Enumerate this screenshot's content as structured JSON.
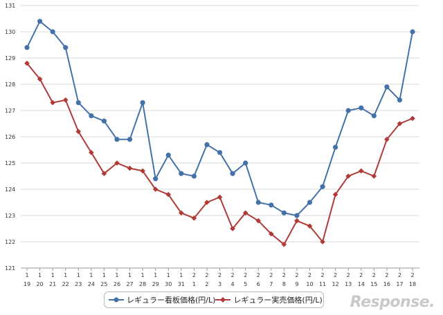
{
  "chart_data": {
    "type": "line",
    "categories": [
      [
        "1",
        "19"
      ],
      [
        "1",
        "20"
      ],
      [
        "1",
        "21"
      ],
      [
        "1",
        "22"
      ],
      [
        "1",
        "23"
      ],
      [
        "1",
        "24"
      ],
      [
        "1",
        "25"
      ],
      [
        "1",
        "26"
      ],
      [
        "1",
        "27"
      ],
      [
        "1",
        "28"
      ],
      [
        "1",
        "29"
      ],
      [
        "1",
        "30"
      ],
      [
        "1",
        "31"
      ],
      [
        "2",
        "1"
      ],
      [
        "2",
        "2"
      ],
      [
        "2",
        "3"
      ],
      [
        "2",
        "4"
      ],
      [
        "2",
        "5"
      ],
      [
        "2",
        "6"
      ],
      [
        "2",
        "7"
      ],
      [
        "2",
        "8"
      ],
      [
        "2",
        "9"
      ],
      [
        "2",
        "10"
      ],
      [
        "2",
        "11"
      ],
      [
        "2",
        "12"
      ],
      [
        "2",
        "13"
      ],
      [
        "2",
        "14"
      ],
      [
        "2",
        "15"
      ],
      [
        "2",
        "16"
      ],
      [
        "2",
        "17"
      ],
      [
        "2",
        "18"
      ]
    ],
    "series": [
      {
        "name": "レギュラー看板価格(円/L)",
        "color": "#4472a8",
        "marker": "circle",
        "values": [
          129.4,
          130.4,
          130.0,
          129.4,
          127.3,
          126.8,
          126.6,
          125.9,
          125.9,
          127.3,
          124.4,
          125.3,
          124.6,
          124.5,
          125.7,
          125.4,
          124.6,
          125.0,
          123.5,
          123.4,
          123.1,
          123.0,
          123.5,
          124.1,
          125.6,
          127.0,
          127.1,
          126.8,
          127.9,
          127.4,
          130.0
        ]
      },
      {
        "name": "レギュラー実売価格(円/L)",
        "color": "#b03a37",
        "marker": "diamond",
        "values": [
          128.8,
          128.2,
          127.3,
          127.4,
          126.2,
          125.4,
          124.6,
          125.0,
          124.8,
          124.7,
          124.0,
          123.8,
          123.1,
          122.9,
          123.5,
          123.7,
          122.5,
          123.1,
          122.8,
          122.3,
          121.9,
          122.8,
          122.6,
          122.0,
          123.8,
          124.5,
          124.7,
          124.5,
          125.9,
          126.5,
          126.7
        ]
      }
    ],
    "y_ticks": [
      "121",
      "122",
      "123",
      "124",
      "125",
      "126",
      "127",
      "128",
      "129",
      "130",
      "131"
    ],
    "ylim": [
      121,
      131
    ],
    "grid": true,
    "legend_position": "bottom"
  },
  "watermark": "Response."
}
